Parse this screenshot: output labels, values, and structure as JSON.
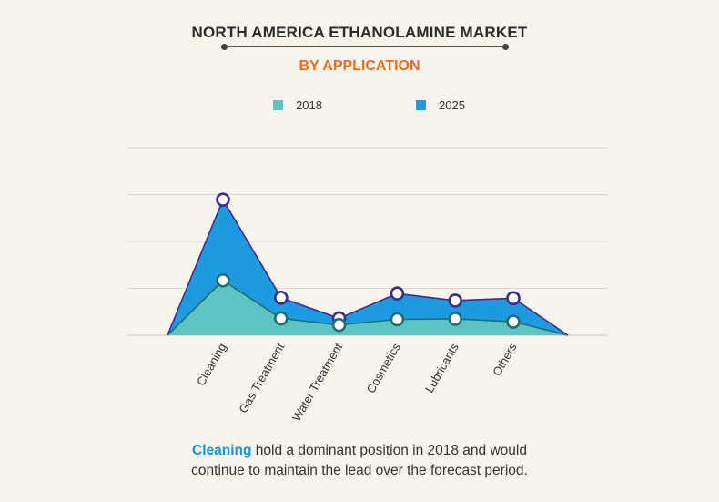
{
  "title": "NORTH AMERICA ETHANOLAMINE MARKET",
  "subtitle": "BY APPLICATION",
  "colors": {
    "series_2018_fill": "#5cc4c4",
    "series_2018_line": "#1f6f70",
    "series_2025_fill": "#1e9be0",
    "series_2025_line": "#3a2d8f",
    "subtitle": "#f06a18",
    "highlight": "#1496d8"
  },
  "footnote": {
    "highlight": "Cleaning",
    "line1_rest": " hold a dominant position in 2018 and would",
    "line2": "continue to maintain the lead over the forecast period."
  },
  "chart_data": {
    "type": "area",
    "title": "NORTH AMERICA ETHANOLAMINE MARKET",
    "subtitle": "BY APPLICATION",
    "categories": [
      "Cleaning",
      "Gas Treatment",
      "Water Treatment",
      "Cosmetics",
      "Lubricants",
      "Others"
    ],
    "series": [
      {
        "name": "2018",
        "values": [
          1.17,
          0.36,
          0.22,
          0.34,
          0.35,
          0.29
        ]
      },
      {
        "name": "2025",
        "values": [
          2.89,
          0.8,
          0.36,
          0.89,
          0.74,
          0.79
        ]
      }
    ],
    "ylim": [
      0,
      4
    ],
    "gridlines": 4,
    "y_tick_labels_shown": false,
    "legend": "top-center",
    "baseline_endpoints": true
  }
}
